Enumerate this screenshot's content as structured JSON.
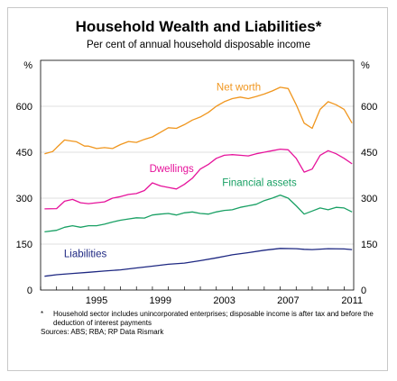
{
  "chart_data": {
    "type": "line",
    "title": "Household Wealth and Liabilities*",
    "subtitle": "Per cent of annual household disposable income",
    "ylabel_left": "%",
    "ylabel_right": "%",
    "xlim": [
      1992.0,
      2011.6
    ],
    "ylim": [
      0,
      750
    ],
    "yticks": [
      0,
      150,
      300,
      450,
      600
    ],
    "xticks": [
      1995,
      1999,
      2003,
      2007,
      2011
    ],
    "series": [
      {
        "name": "Net worth",
        "color": "#f0961e",
        "x": [
          1992.25,
          1992.75,
          1993.0,
          1993.5,
          1993.75,
          1994.25,
          1994.75,
          1995.0,
          1995.5,
          1996.0,
          1996.5,
          1997.0,
          1997.5,
          1998.0,
          1998.5,
          1999.0,
          1999.5,
          2000.0,
          2000.5,
          2001.0,
          2001.5,
          2002.0,
          2002.5,
          2003.0,
          2003.5,
          2004.0,
          2004.5,
          2005.0,
          2005.5,
          2006.0,
          2006.5,
          2007.0,
          2007.5,
          2008.0,
          2008.5,
          2009.0,
          2009.5,
          2010.0,
          2010.5,
          2011.0,
          2011.5
        ],
        "values": [
          445,
          452,
          465,
          490,
          488,
          484,
          470,
          470,
          462,
          465,
          462,
          475,
          485,
          482,
          492,
          500,
          515,
          530,
          528,
          540,
          555,
          565,
          580,
          600,
          615,
          625,
          630,
          625,
          632,
          640,
          650,
          662,
          658,
          605,
          545,
          528,
          590,
          615,
          605,
          590,
          545
        ]
      },
      {
        "name": "Dwellings",
        "color": "#e6139b",
        "x": [
          1992.25,
          1993.0,
          1993.5,
          1994.0,
          1994.5,
          1995.0,
          1995.5,
          1996.0,
          1996.5,
          1997.0,
          1997.5,
          1998.0,
          1998.5,
          1999.0,
          1999.5,
          2000.0,
          2000.5,
          2001.0,
          2001.5,
          2002.0,
          2002.5,
          2003.0,
          2003.5,
          2004.0,
          2004.5,
          2005.0,
          2005.5,
          2006.0,
          2006.5,
          2007.0,
          2007.5,
          2008.0,
          2008.5,
          2009.0,
          2009.5,
          2010.0,
          2010.5,
          2011.0,
          2011.5
        ],
        "values": [
          265,
          266,
          290,
          296,
          285,
          282,
          285,
          288,
          300,
          305,
          312,
          315,
          325,
          350,
          340,
          335,
          330,
          345,
          365,
          395,
          410,
          430,
          440,
          442,
          440,
          438,
          445,
          450,
          455,
          460,
          458,
          430,
          385,
          395,
          440,
          455,
          445,
          430,
          412
        ]
      },
      {
        "name": "Financial assets",
        "color": "#19a064",
        "x": [
          1992.25,
          1993.0,
          1993.5,
          1994.0,
          1994.5,
          1995.0,
          1995.5,
          1996.0,
          1996.5,
          1997.0,
          1997.5,
          1998.0,
          1998.5,
          1999.0,
          1999.5,
          2000.0,
          2000.5,
          2001.0,
          2001.5,
          2002.0,
          2002.5,
          2003.0,
          2003.5,
          2004.0,
          2004.5,
          2005.0,
          2005.5,
          2006.0,
          2006.5,
          2007.0,
          2007.5,
          2008.0,
          2008.5,
          2009.0,
          2009.5,
          2010.0,
          2010.5,
          2011.0,
          2011.5
        ],
        "values": [
          190,
          195,
          205,
          210,
          205,
          210,
          210,
          215,
          222,
          228,
          232,
          236,
          235,
          245,
          248,
          250,
          245,
          252,
          255,
          250,
          248,
          255,
          260,
          262,
          270,
          275,
          280,
          292,
          300,
          310,
          300,
          275,
          248,
          258,
          268,
          262,
          270,
          268,
          255
        ]
      },
      {
        "name": "Liabilities",
        "color": "#1e2882",
        "x": [
          1992.25,
          1993.0,
          1994.0,
          1995.0,
          1996.0,
          1997.0,
          1998.0,
          1999.0,
          2000.0,
          2001.0,
          2002.0,
          2003.0,
          2004.0,
          2005.0,
          2006.0,
          2007.0,
          2008.0,
          2008.5,
          2009.0,
          2010.0,
          2011.0,
          2011.5
        ],
        "values": [
          45,
          50,
          54,
          58,
          62,
          66,
          72,
          78,
          84,
          88,
          96,
          105,
          115,
          122,
          130,
          136,
          135,
          133,
          132,
          135,
          134,
          132
        ]
      }
    ],
    "annotations": [
      "Net worth",
      "Dwellings",
      "Financial assets",
      "Liabilities"
    ],
    "grid": true,
    "footnote_marker": "*",
    "footnote": "Household sector includes unincorporated enterprises; disposable income is after tax and before the deduction of interest payments",
    "sources": "Sources:  ABS;  RBA; RP Data Rismark"
  }
}
